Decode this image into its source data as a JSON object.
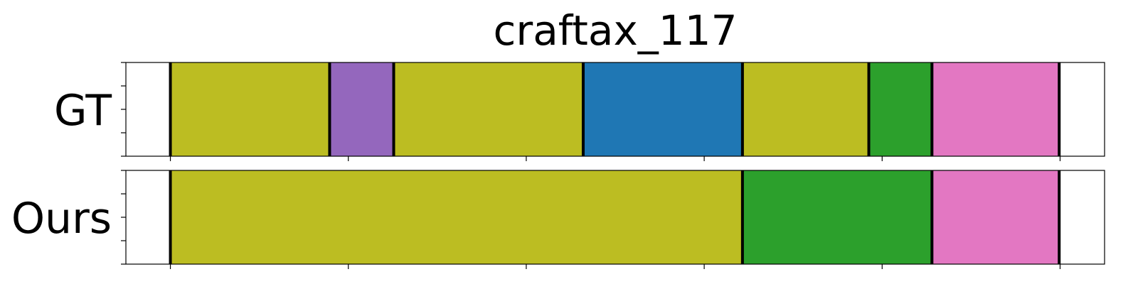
{
  "chart_data": {
    "type": "segmentation-timeline",
    "title": "craftax_117",
    "xlim": [
      0,
      550
    ],
    "x_ticks": [
      25,
      125,
      225,
      325,
      425,
      525
    ],
    "boundary_color": "#000000",
    "rows": [
      {
        "label": "GT",
        "segments": [
          {
            "start": 25,
            "end": 114.5,
            "color": "#bcbd22"
          },
          {
            "start": 114.5,
            "end": 150.5,
            "color": "#9467bd"
          },
          {
            "start": 150.5,
            "end": 257,
            "color": "#bcbd22"
          },
          {
            "start": 257,
            "end": 346.5,
            "color": "#1f77b4"
          },
          {
            "start": 346.5,
            "end": 417.5,
            "color": "#bcbd22"
          },
          {
            "start": 417.5,
            "end": 453,
            "color": "#2ca02c"
          },
          {
            "start": 453,
            "end": 524.5,
            "color": "#e377c2"
          }
        ]
      },
      {
        "label": "Ours",
        "segments": [
          {
            "start": 25,
            "end": 346.5,
            "color": "#bcbd22"
          },
          {
            "start": 346.5,
            "end": 453,
            "color": "#2ca02c"
          },
          {
            "start": 453,
            "end": 524.5,
            "color": "#e377c2"
          }
        ]
      }
    ]
  }
}
